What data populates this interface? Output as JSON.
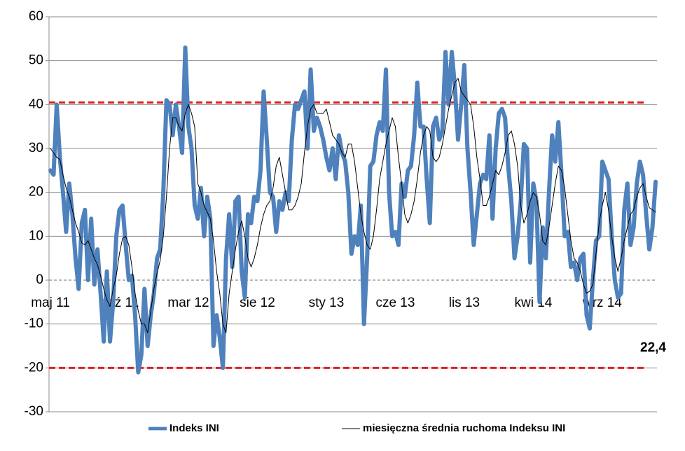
{
  "chart_data": {
    "type": "line",
    "categories": [
      "maj 11",
      null,
      null,
      null,
      null,
      null,
      null,
      null,
      null,
      null,
      null,
      null,
      null,
      null,
      null,
      null,
      null,
      null,
      null,
      null,
      null,
      null,
      "paź 11",
      null,
      null,
      null,
      null,
      null,
      null,
      null,
      null,
      null,
      null,
      null,
      null,
      null,
      null,
      null,
      null,
      null,
      null,
      null,
      null,
      null,
      "mar 12",
      null,
      null,
      null,
      null,
      null,
      null,
      null,
      null,
      null,
      null,
      null,
      null,
      null,
      null,
      null,
      null,
      null,
      null,
      null,
      null,
      null,
      "sie 12",
      null,
      null,
      null,
      null,
      null,
      null,
      null,
      null,
      null,
      null,
      null,
      null,
      null,
      null,
      null,
      null,
      null,
      null,
      null,
      null,
      null,
      "sty 13",
      null,
      null,
      null,
      null,
      null,
      null,
      null,
      null,
      null,
      null,
      null,
      null,
      null,
      null,
      null,
      null,
      null,
      null,
      null,
      null,
      null,
      "cze 13",
      null,
      null,
      null,
      null,
      null,
      null,
      null,
      null,
      null,
      null,
      null,
      null,
      null,
      null,
      null,
      null,
      null,
      null,
      null,
      null,
      null,
      "lis 13",
      null,
      null,
      null,
      null,
      null,
      null,
      null,
      null,
      null,
      null,
      null,
      null,
      null,
      null,
      null,
      null,
      null,
      null,
      null,
      null,
      null,
      "kwi 14",
      null,
      null,
      null,
      null,
      null,
      null,
      null,
      null,
      null,
      null,
      null,
      null,
      null,
      null,
      null,
      null,
      null,
      null,
      null,
      null,
      null,
      "wrz 14",
      null,
      null,
      null,
      null,
      null,
      null,
      null,
      null,
      null,
      null,
      null,
      null,
      null,
      null,
      null,
      null,
      null
    ],
    "series": [
      {
        "name": "Indeks INI",
        "color": "#4f81bd",
        "width": 6,
        "values": [
          25,
          24,
          40,
          28,
          20,
          11,
          22,
          15,
          5,
          -2,
          13,
          16,
          0,
          14,
          -1,
          7,
          -3,
          -14,
          2,
          -14,
          -5,
          10,
          16,
          17,
          8,
          0,
          1,
          -8,
          -21,
          -17,
          -2,
          -15,
          -8,
          -3,
          5,
          7,
          20,
          41,
          40,
          33,
          40,
          35,
          29,
          53,
          35,
          30,
          17,
          14,
          21,
          10,
          19,
          14,
          -15,
          -8,
          -13,
          -20,
          5,
          15,
          3,
          18,
          19,
          2,
          -4,
          15,
          13,
          19,
          18,
          25,
          43,
          32,
          20,
          19,
          11,
          18,
          16,
          20,
          18,
          32,
          40,
          39,
          41,
          43,
          30,
          48,
          34,
          37,
          35,
          32,
          28,
          25,
          30,
          23,
          33,
          29,
          27,
          20,
          6,
          10,
          8,
          17,
          -10,
          5,
          26,
          27,
          33,
          36,
          34,
          48,
          20,
          10,
          11,
          8,
          22,
          19,
          25,
          26,
          33,
          45,
          35,
          35,
          23,
          13,
          35,
          37,
          32,
          34,
          52,
          40,
          52,
          44,
          32,
          40,
          49,
          30,
          20,
          8,
          15,
          22,
          24,
          23,
          33,
          14,
          30,
          38,
          39,
          37,
          26,
          18,
          5,
          10,
          18,
          31,
          30,
          4,
          22,
          18,
          -5,
          12,
          5,
          20,
          33,
          27,
          36,
          24,
          10,
          11,
          3,
          4,
          0,
          5,
          6,
          -8,
          -11,
          0,
          9,
          10,
          27,
          25,
          23,
          10,
          0,
          -4,
          -3,
          16,
          22,
          8,
          12,
          22,
          27,
          24,
          15,
          7,
          12,
          22.4
        ]
      },
      {
        "name": "miesięczna średnia ruchoma Indeksu INI",
        "color": "#000000",
        "width": 1,
        "values": [
          30,
          29,
          28,
          27.5,
          24,
          21,
          19,
          16,
          13,
          11,
          8.5,
          8,
          9,
          7,
          5,
          3.5,
          1,
          -2,
          -4.5,
          -6,
          -2,
          1,
          6,
          9.5,
          10,
          8,
          3,
          -3,
          -7,
          -10,
          -10,
          -12,
          -7,
          -2,
          1.5,
          4.5,
          10,
          19,
          30,
          37,
          37,
          35,
          34,
          38,
          40,
          38,
          35,
          22,
          20,
          17,
          15.5,
          14,
          9,
          2,
          -3,
          -10,
          -12,
          -3,
          2,
          7,
          11,
          13.5,
          10,
          5,
          3,
          5,
          8,
          12,
          15,
          17,
          18,
          21,
          26,
          28,
          24,
          20,
          16,
          16,
          17,
          19,
          22,
          29,
          35,
          39,
          40,
          38,
          38,
          38,
          39,
          36,
          33,
          32,
          31,
          29,
          28,
          31,
          31,
          27,
          21,
          15,
          11,
          8,
          7,
          10,
          16,
          23,
          27,
          31,
          34,
          37,
          35,
          28,
          22,
          15,
          13,
          15,
          18,
          23,
          29,
          33,
          35,
          34,
          28,
          27,
          28,
          31,
          35,
          39,
          42,
          45,
          46,
          43,
          42,
          41,
          40,
          35,
          28,
          23,
          17,
          17,
          19,
          22,
          25,
          24,
          26,
          29,
          33,
          34,
          31,
          26,
          17,
          13,
          15,
          18,
          20,
          19,
          15,
          9,
          8,
          12,
          17,
          22,
          26,
          25,
          21,
          15,
          9,
          5,
          4,
          2,
          -1,
          -3,
          -2.5,
          -1,
          6,
          13,
          17,
          20,
          16,
          10,
          5,
          2,
          5,
          9,
          12,
          15,
          16,
          19,
          21,
          22,
          19,
          16.5,
          16,
          15.5
        ]
      }
    ],
    "ylim": [
      -30,
      60
    ],
    "yticks": [
      -30,
      -20,
      -10,
      0,
      10,
      20,
      30,
      40,
      50,
      60
    ],
    "grid": true,
    "reference_lines": [
      {
        "value": 40.5,
        "color": "#e02020"
      },
      {
        "value": -20,
        "color": "#e02020"
      }
    ],
    "annotation": "22,4",
    "annotation_color": "#1f6fb5",
    "legend": "bottom"
  }
}
